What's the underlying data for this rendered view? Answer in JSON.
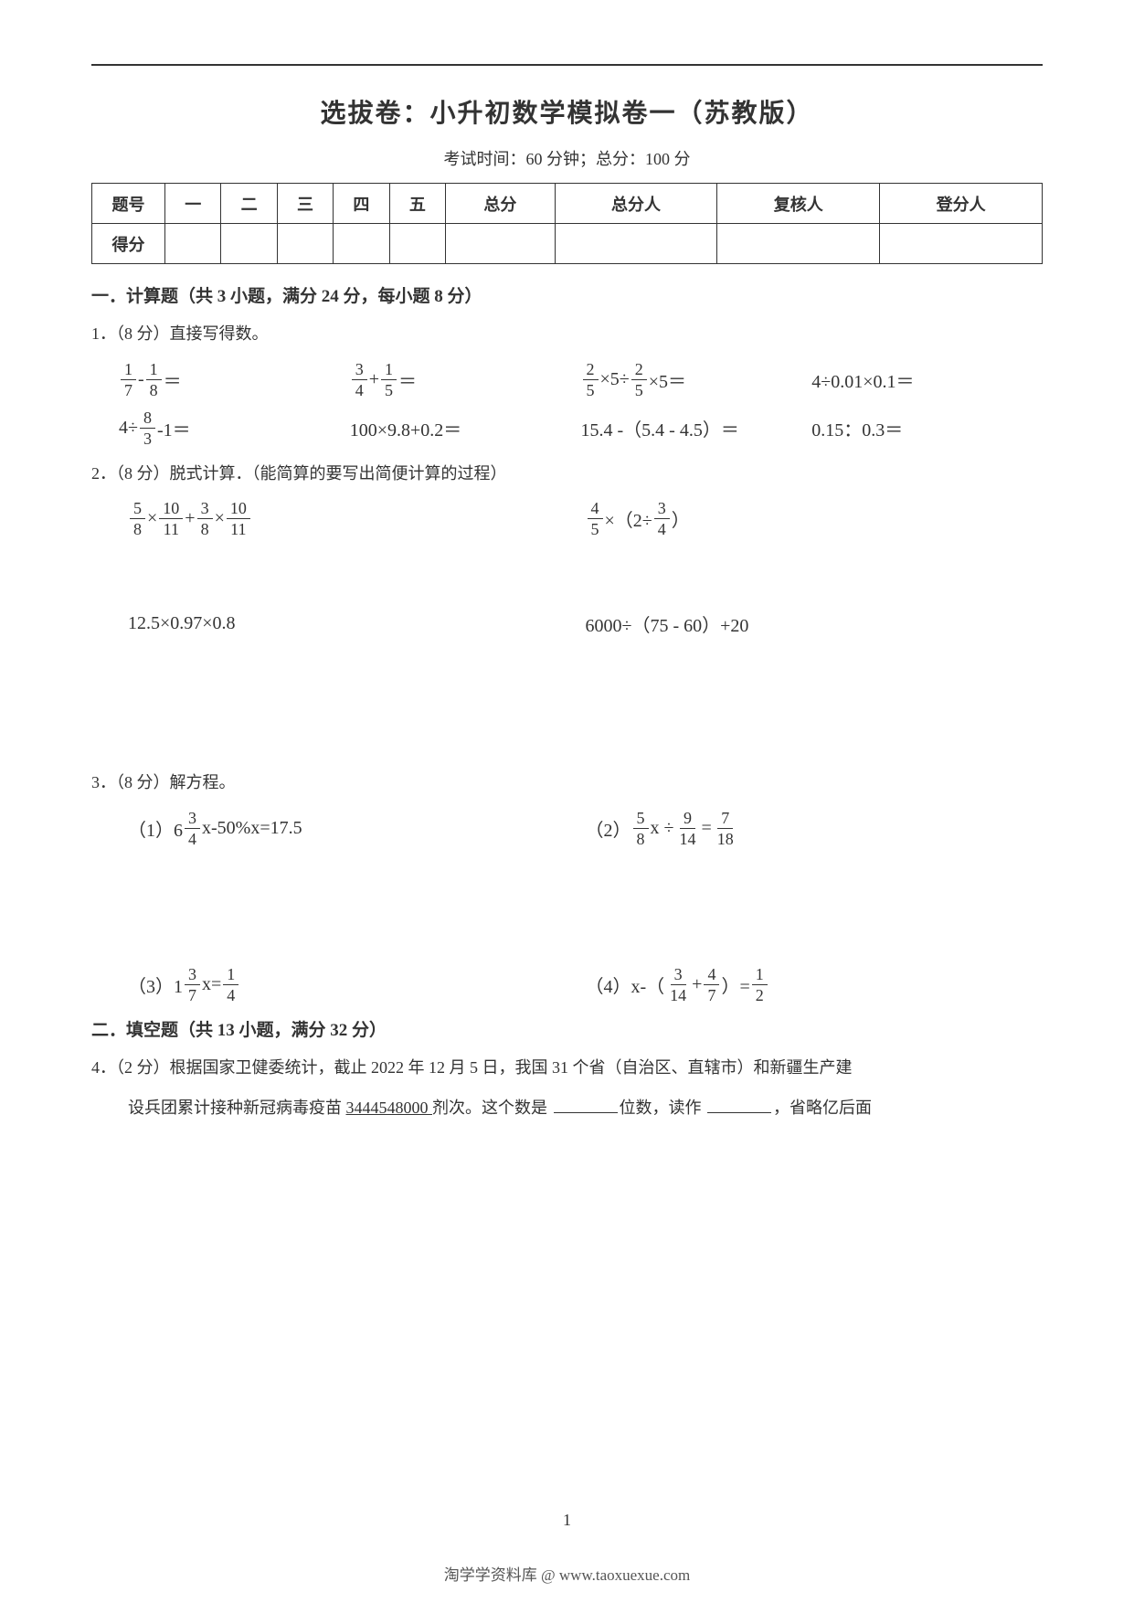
{
  "title": "选拔卷：小升初数学模拟卷一（苏教版）",
  "subtitle": "考试时间：60 分钟；总分：100 分",
  "table_headers": {
    "row1": [
      "题号",
      "一",
      "二",
      "三",
      "四",
      "五",
      "总分",
      "总分人",
      "复核人",
      "登分人"
    ],
    "row2_label": "得分"
  },
  "section1": {
    "heading": "一．计算题（共 3 小题，满分 24 分，每小题 8 分）",
    "q1": {
      "label": "1．（8 分）直接写得数。",
      "r1c3_tail": " ×5÷",
      "r1c3_tail2": " ×5＝",
      "r1c4": "4÷0.01×0.1＝",
      "r2c1_pre": "4÷",
      "r2c1_post": "-1＝",
      "r2c2": "100×9.8+0.2＝",
      "r2c3": "15.4 -（5.4 - 4.5）＝",
      "r2c4": "0.15：0.3＝"
    },
    "q2": {
      "label": "2．（8 分）脱式计算．（能简算的要写出简便计算的过程）",
      "b_mid": "×（2÷",
      "b_post": "）",
      "c": "12.5×0.97×0.8",
      "d": "6000÷（75 - 60）+20"
    },
    "q3": {
      "label": "3．（8 分）解方程。",
      "a_pre": "（1）6",
      "a_post": "x-50%x=17.5",
      "b_pre": "（2）",
      "b_mid": " x ÷ ",
      "b_eq": " = ",
      "c_pre": "（3）1",
      "c_mid": " x=",
      "d_pre": "（4）x-（",
      "d_plus": " + ",
      "d_mid": "）=",
      "f_3": "3",
      "f_4": "4",
      "f_5": "5",
      "f_7": "7",
      "f_8": "8",
      "f_9": "9",
      "f_14": "14",
      "f_18": "18",
      "f_1": "1",
      "f_2": "2"
    }
  },
  "section2": {
    "heading": "二．填空题（共 13 小题，满分 32 分）",
    "q4_a": "4．（2 分）根据国家卫健委统计，截止 2022 年 12 月 5 日，我国 31 个省（自治区、直辖市）和新疆生产建",
    "q4_b_pre": "设兵团累计接种新冠病毒疫苗 ",
    "q4_b_num": "3444548000 ",
    "q4_b_mid": "剂次。这个数是 ",
    "q4_b_mid2": "位数，读作 ",
    "q4_b_post": "，省略亿后面"
  },
  "frac": {
    "1_7": {
      "n": "1",
      "d": "7"
    },
    "1_8": {
      "n": "1",
      "d": "8"
    },
    "3_4": {
      "n": "3",
      "d": "4"
    },
    "1_5": {
      "n": "1",
      "d": "5"
    },
    "2_5": {
      "n": "2",
      "d": "5"
    },
    "8_3": {
      "n": "8",
      "d": "3"
    },
    "5_8": {
      "n": "5",
      "d": "8"
    },
    "10_11": {
      "n": "10",
      "d": "11"
    },
    "3_8": {
      "n": "3",
      "d": "8"
    },
    "4_5": {
      "n": "4",
      "d": "5"
    },
    "9_14": {
      "n": "9",
      "d": "14"
    },
    "7_18": {
      "n": "7",
      "d": "18"
    },
    "3_7": {
      "n": "3",
      "d": "7"
    },
    "1_4": {
      "n": "1",
      "d": "4"
    },
    "3_14": {
      "n": "3",
      "d": "14"
    },
    "4_7": {
      "n": "4",
      "d": "7"
    },
    "1_2": {
      "n": "1",
      "d": "2"
    }
  },
  "ops": {
    "minus": "-",
    "plus": "+",
    "times": "×",
    "eq": "＝"
  },
  "page_number": "1",
  "footer": "淘学学资料库 @ www.taoxuexue.com"
}
